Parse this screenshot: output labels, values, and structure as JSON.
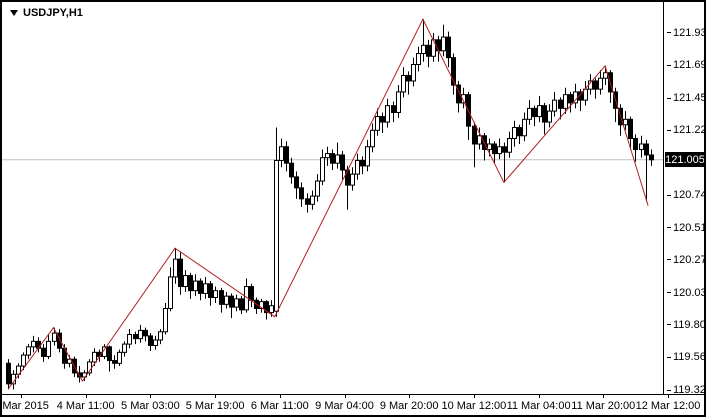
{
  "window": {
    "symbol_label": "USDJPY,H1"
  },
  "chart_data": {
    "type": "candlestick",
    "title": "USDJPY,H1",
    "symbol": "USDJPY",
    "timeframe": "H1",
    "current_price": "121.005",
    "ylim": [
      119.296,
      122.156
    ],
    "grid": false,
    "colors": {
      "background": "#ffffff",
      "candle_outline": "#000000",
      "bull_fill": "#ffffff",
      "bear_fill": "#000000",
      "zigzag": "#b22222",
      "current_price_line": "#c0c0c0",
      "price_tag_bg": "#000000",
      "price_tag_text": "#ffffff"
    },
    "price_axis_ticks": [
      "121.930",
      "121.695",
      "121.455",
      "121.220",
      "120.745",
      "120.510",
      "120.275",
      "120.035",
      "119.800",
      "119.565",
      "119.325"
    ],
    "time_axis_ticks": [
      "3 Mar 2015",
      "4 Mar 11:00",
      "5 Mar 03:00",
      "5 Mar 19:00",
      "6 Mar 11:00",
      "9 Mar 04:00",
      "9 Mar 20:00",
      "10 Mar 12:00",
      "11 Mar 04:00",
      "11 Mar 20:00",
      "12 Mar 12:00"
    ],
    "candles": [
      [
        119.52,
        119.55,
        119.33,
        119.37
      ],
      [
        119.37,
        119.47,
        119.33,
        119.44
      ],
      [
        119.44,
        119.52,
        119.41,
        119.5
      ],
      [
        119.5,
        119.6,
        119.47,
        119.58
      ],
      [
        119.58,
        119.66,
        119.55,
        119.64
      ],
      [
        119.64,
        119.72,
        119.6,
        119.68
      ],
      [
        119.68,
        119.71,
        119.6,
        119.63
      ],
      [
        119.63,
        119.66,
        119.53,
        119.57
      ],
      [
        119.57,
        119.73,
        119.55,
        119.68
      ],
      [
        119.68,
        119.78,
        119.65,
        119.74
      ],
      [
        119.74,
        119.77,
        119.6,
        119.63
      ],
      [
        119.63,
        119.66,
        119.48,
        119.52
      ],
      [
        119.52,
        119.58,
        119.49,
        119.55
      ],
      [
        119.55,
        119.57,
        119.42,
        119.45
      ],
      [
        119.45,
        119.5,
        119.38,
        119.42
      ],
      [
        119.42,
        119.47,
        119.39,
        119.45
      ],
      [
        119.45,
        119.55,
        119.43,
        119.53
      ],
      [
        119.53,
        119.63,
        119.5,
        119.6
      ],
      [
        119.6,
        119.62,
        119.53,
        119.57
      ],
      [
        119.57,
        119.66,
        119.55,
        119.64
      ],
      [
        119.64,
        119.65,
        119.46,
        119.54
      ],
      [
        119.54,
        119.58,
        119.48,
        119.52
      ],
      [
        119.52,
        119.62,
        119.5,
        119.6
      ],
      [
        119.6,
        119.68,
        119.57,
        119.66
      ],
      [
        119.66,
        119.77,
        119.63,
        119.73
      ],
      [
        119.73,
        119.75,
        119.66,
        119.7
      ],
      [
        119.7,
        119.8,
        119.67,
        119.76
      ],
      [
        119.76,
        119.78,
        119.68,
        119.72
      ],
      [
        119.72,
        119.74,
        119.61,
        119.65
      ],
      [
        119.65,
        119.72,
        119.62,
        119.69
      ],
      [
        119.69,
        119.77,
        119.66,
        119.75
      ],
      [
        119.75,
        119.96,
        119.73,
        119.92
      ],
      [
        119.92,
        120.22,
        119.9,
        120.15
      ],
      [
        120.15,
        120.36,
        120.1,
        120.28
      ],
      [
        120.28,
        120.33,
        120.02,
        120.08
      ],
      [
        120.08,
        120.2,
        120.04,
        120.16
      ],
      [
        120.16,
        120.18,
        119.99,
        120.05
      ],
      [
        120.05,
        120.17,
        120.01,
        120.12
      ],
      [
        120.12,
        120.14,
        119.98,
        120.03
      ],
      [
        120.03,
        120.15,
        119.99,
        120.1
      ],
      [
        120.1,
        120.12,
        119.94,
        120.0
      ],
      [
        120.0,
        120.08,
        119.96,
        120.05
      ],
      [
        120.05,
        120.07,
        119.89,
        119.95
      ],
      [
        119.95,
        120.04,
        119.92,
        120.01
      ],
      [
        120.01,
        120.03,
        119.85,
        119.93
      ],
      [
        119.93,
        120.02,
        119.9,
        119.99
      ],
      [
        119.99,
        120.01,
        119.88,
        119.91
      ],
      [
        119.91,
        120.14,
        119.89,
        120.08
      ],
      [
        120.08,
        120.1,
        119.93,
        119.98
      ],
      [
        119.98,
        120.0,
        119.88,
        119.92
      ],
      [
        119.92,
        119.99,
        119.89,
        119.97
      ],
      [
        119.97,
        119.98,
        119.84,
        119.89
      ],
      [
        119.89,
        119.98,
        119.86,
        119.94
      ],
      [
        119.9,
        121.24,
        119.86,
        121.0
      ],
      [
        121.0,
        121.16,
        120.95,
        121.1
      ],
      [
        121.1,
        121.14,
        120.92,
        120.98
      ],
      [
        120.98,
        121.02,
        120.83,
        120.88
      ],
      [
        120.88,
        120.92,
        120.72,
        120.8
      ],
      [
        120.8,
        120.84,
        120.66,
        120.72
      ],
      [
        120.72,
        120.76,
        120.62,
        120.68
      ],
      [
        120.68,
        120.78,
        120.64,
        120.74
      ],
      [
        120.74,
        120.9,
        120.7,
        120.85
      ],
      [
        120.85,
        121.08,
        120.82,
        121.02
      ],
      [
        121.02,
        121.1,
        120.96,
        121.05
      ],
      [
        121.05,
        121.08,
        120.93,
        120.98
      ],
      [
        120.98,
        121.13,
        120.94,
        121.04
      ],
      [
        121.04,
        121.07,
        120.86,
        120.93
      ],
      [
        120.93,
        120.96,
        120.64,
        120.82
      ],
      [
        120.82,
        120.95,
        120.78,
        120.9
      ],
      [
        120.9,
        121.05,
        120.86,
        121.0
      ],
      [
        121.0,
        121.03,
        120.9,
        120.96
      ],
      [
        120.96,
        121.15,
        120.92,
        121.1
      ],
      [
        121.1,
        121.27,
        121.06,
        121.22
      ],
      [
        121.22,
        121.38,
        121.18,
        121.32
      ],
      [
        121.32,
        121.35,
        121.2,
        121.28
      ],
      [
        121.28,
        121.45,
        121.24,
        121.4
      ],
      [
        121.4,
        121.43,
        121.28,
        121.35
      ],
      [
        121.35,
        121.55,
        121.31,
        121.5
      ],
      [
        121.5,
        121.68,
        121.46,
        121.62
      ],
      [
        121.62,
        121.65,
        121.48,
        121.58
      ],
      [
        121.58,
        121.75,
        121.54,
        121.7
      ],
      [
        121.7,
        121.83,
        121.65,
        121.78
      ],
      [
        121.78,
        122.03,
        121.72,
        121.84
      ],
      [
        121.84,
        121.88,
        121.68,
        121.76
      ],
      [
        121.76,
        121.93,
        121.72,
        121.88
      ],
      [
        121.88,
        121.91,
        121.72,
        121.8
      ],
      [
        121.8,
        121.99,
        121.76,
        121.9
      ],
      [
        121.9,
        121.94,
        121.68,
        121.75
      ],
      [
        121.75,
        121.78,
        121.48,
        121.55
      ],
      [
        121.55,
        121.58,
        121.35,
        121.42
      ],
      [
        121.42,
        121.53,
        121.38,
        121.48
      ],
      [
        121.48,
        121.5,
        121.15,
        121.25
      ],
      [
        121.25,
        121.28,
        120.95,
        121.12
      ],
      [
        121.12,
        121.24,
        121.08,
        121.18
      ],
      [
        121.18,
        121.2,
        121.0,
        121.08
      ],
      [
        121.08,
        121.16,
        121.03,
        121.12
      ],
      [
        121.12,
        121.14,
        120.98,
        121.05
      ],
      [
        121.05,
        121.16,
        121.01,
        121.1
      ],
      [
        121.1,
        121.13,
        120.84,
        121.06
      ],
      [
        121.06,
        121.21,
        121.02,
        121.16
      ],
      [
        121.16,
        121.29,
        121.1,
        121.24
      ],
      [
        121.24,
        121.26,
        121.12,
        121.18
      ],
      [
        121.18,
        121.35,
        121.14,
        121.3
      ],
      [
        121.3,
        121.44,
        121.26,
        121.38
      ],
      [
        121.38,
        121.4,
        121.25,
        121.32
      ],
      [
        121.32,
        121.47,
        121.28,
        121.4
      ],
      [
        121.4,
        121.42,
        121.19,
        121.28
      ],
      [
        121.28,
        121.41,
        121.24,
        121.36
      ],
      [
        121.36,
        121.5,
        121.32,
        121.44
      ],
      [
        121.44,
        121.46,
        121.3,
        121.38
      ],
      [
        121.38,
        121.53,
        121.34,
        121.48
      ],
      [
        121.48,
        121.5,
        121.35,
        121.42
      ],
      [
        121.42,
        121.56,
        121.38,
        121.5
      ],
      [
        121.5,
        121.52,
        121.36,
        121.44
      ],
      [
        121.44,
        121.58,
        121.4,
        121.52
      ],
      [
        121.52,
        121.63,
        121.48,
        121.58
      ],
      [
        121.58,
        121.6,
        121.45,
        121.52
      ],
      [
        121.52,
        121.66,
        121.48,
        121.6
      ],
      [
        121.6,
        121.69,
        121.55,
        121.64
      ],
      [
        121.64,
        121.66,
        121.42,
        121.5
      ],
      [
        121.5,
        121.53,
        121.28,
        121.38
      ],
      [
        121.38,
        121.41,
        121.18,
        121.26
      ],
      [
        121.26,
        121.36,
        121.22,
        121.3
      ],
      [
        121.3,
        121.32,
        121.08,
        121.16
      ],
      [
        121.16,
        121.19,
        120.99,
        121.08
      ],
      [
        121.08,
        121.18,
        121.02,
        121.12
      ],
      [
        121.12,
        121.15,
        120.7,
        121.04
      ],
      [
        121.04,
        121.08,
        120.96,
        121.005
      ]
    ],
    "zigzag": {
      "name": "ZigZag",
      "points": [
        {
          "i": 0,
          "p": 119.33
        },
        {
          "i": 9,
          "p": 119.78
        },
        {
          "i": 14.7,
          "p": 119.39
        },
        {
          "i": 33,
          "p": 120.36
        },
        {
          "i": 52.7,
          "p": 119.86
        },
        {
          "i": 82,
          "p": 122.03
        },
        {
          "i": 98,
          "p": 120.84
        },
        {
          "i": 118,
          "p": 121.69
        },
        {
          "i": 126.5,
          "p": 120.67
        }
      ]
    }
  }
}
